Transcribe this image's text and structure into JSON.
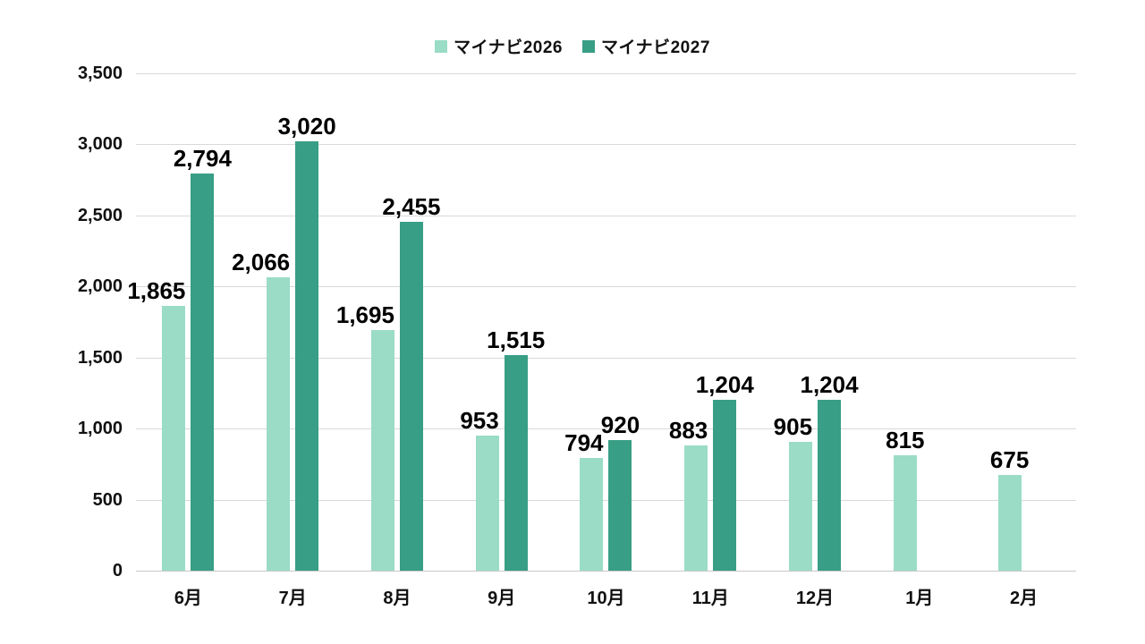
{
  "legend": {
    "series1_label": "マイナビ2026",
    "series2_label": "マイナビ2027"
  },
  "chart_data": {
    "type": "bar",
    "title": "",
    "xlabel": "",
    "ylabel": "",
    "categories": [
      "6月",
      "7月",
      "8月",
      "9月",
      "10月",
      "11月",
      "12月",
      "1月",
      "2月"
    ],
    "series": [
      {
        "name": "マイナビ2026",
        "color": "#9adcc6",
        "values": [
          1865,
          2066,
          1695,
          953,
          794,
          883,
          905,
          815,
          675
        ]
      },
      {
        "name": "マイナビ2027",
        "color": "#389e85",
        "values": [
          2794,
          3020,
          2455,
          1515,
          920,
          1204,
          1204,
          null,
          null
        ]
      }
    ],
    "data_labels": {
      "series1": [
        "1,865",
        "2,066",
        "1,695",
        "953",
        "794",
        "883",
        "905",
        "815",
        "675"
      ],
      "series2": [
        "2,794",
        "3,020",
        "2,455",
        "1,515",
        "920",
        "1,204",
        "1,204",
        null,
        null
      ]
    },
    "ylim": [
      0,
      3500
    ],
    "ytick_interval": 500,
    "yticks": [
      0,
      500,
      1000,
      1500,
      2000,
      2500,
      3000,
      3500
    ],
    "ytick_labels": [
      "0",
      "500",
      "1,000",
      "1,500",
      "2,000",
      "2,500",
      "3,000",
      "3,500"
    ],
    "legend_position": "top-center",
    "grid": "horizontal",
    "colors": {
      "gridline": "#d9d9d9",
      "axis_line": "#c8c8c8",
      "label_text": "#000000",
      "tick_text": "#111111",
      "background": "#ffffff"
    }
  }
}
